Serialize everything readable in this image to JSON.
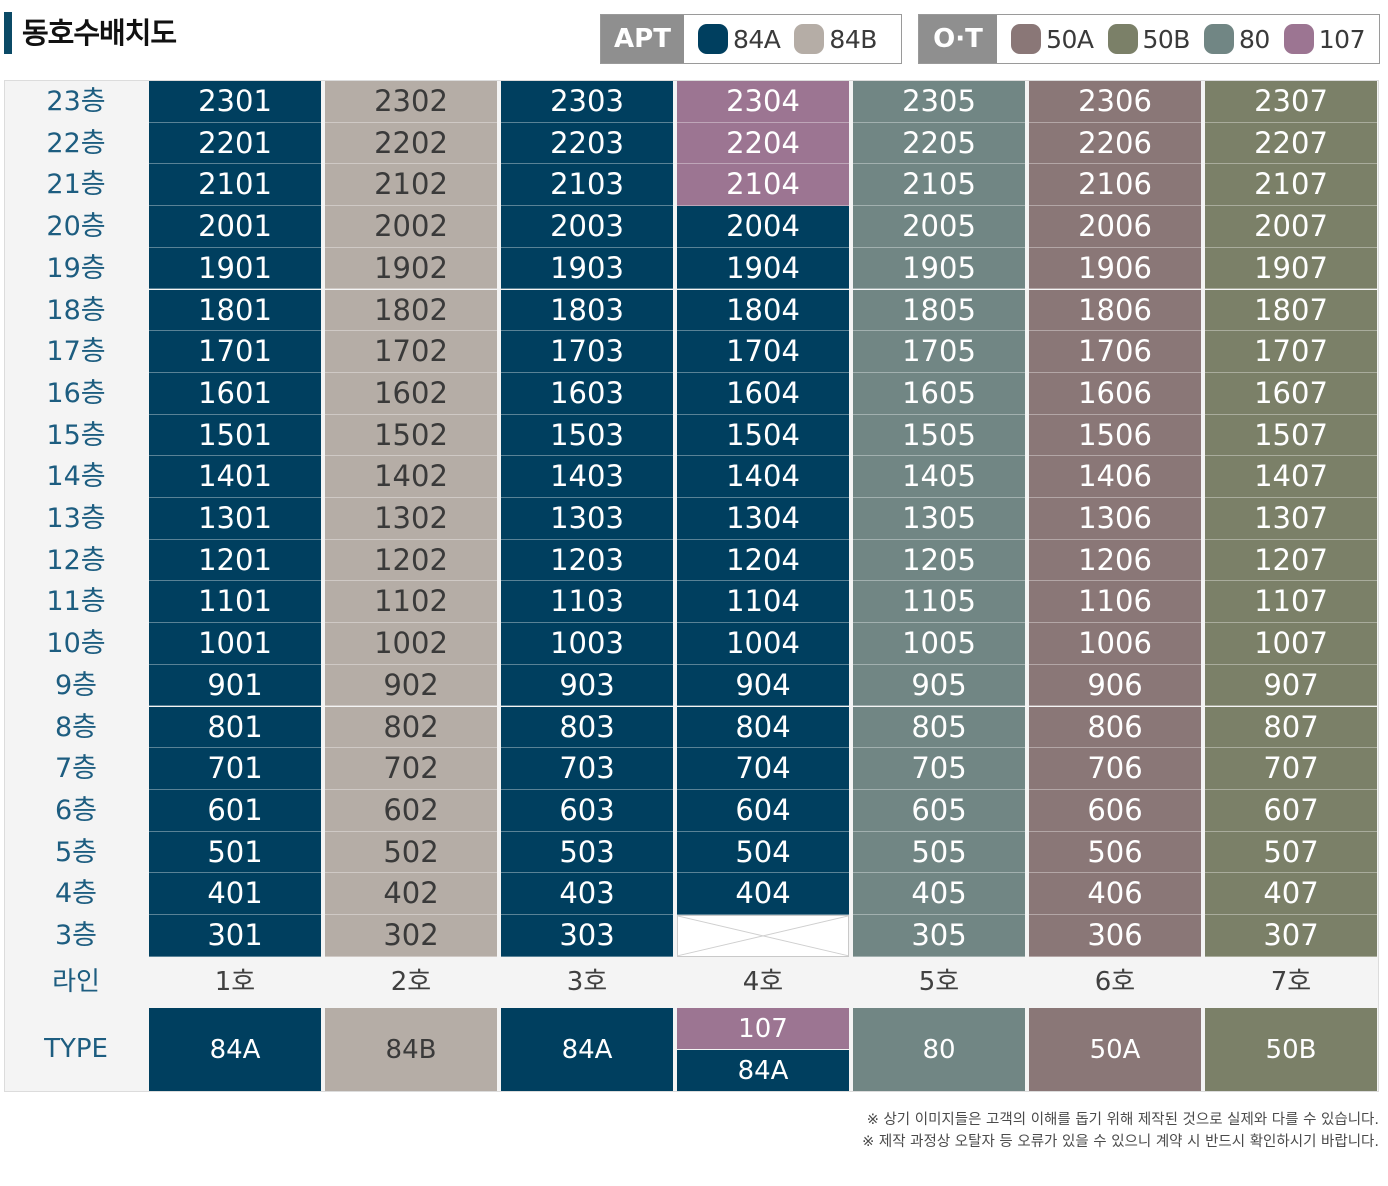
{
  "title": "동호수배치도",
  "legend": {
    "apt": {
      "label": "APT",
      "items": [
        {
          "name": "84A",
          "color": "#003f5f"
        },
        {
          "name": "84B",
          "color": "#b5ada6"
        }
      ]
    },
    "ot": {
      "label": "O·T",
      "items": [
        {
          "name": "50A",
          "color": "#8a7777"
        },
        {
          "name": "50B",
          "color": "#7b8068"
        },
        {
          "name": "80",
          "color": "#718684"
        },
        {
          "name": "107",
          "color": "#9c7592"
        }
      ]
    }
  },
  "floors": [
    "23층",
    "22층",
    "21층",
    "20층",
    "19층",
    "18층",
    "17층",
    "16층",
    "15층",
    "14층",
    "13층",
    "12층",
    "11층",
    "10층",
    "9층",
    "8층",
    "7층",
    "6층",
    "5층",
    "4층",
    "3층"
  ],
  "lines": [
    {
      "label": "1호",
      "type": "84A",
      "color": "#003f5f",
      "units": [
        "2301",
        "2201",
        "2101",
        "2001",
        "1901",
        "1801",
        "1701",
        "1601",
        "1501",
        "1401",
        "1301",
        "1201",
        "1101",
        "1001",
        "901",
        "801",
        "701",
        "601",
        "501",
        "401",
        "301"
      ]
    },
    {
      "label": "2호",
      "type": "84B",
      "color": "#b5ada6",
      "units": [
        "2302",
        "2202",
        "2102",
        "2002",
        "1902",
        "1802",
        "1702",
        "1602",
        "1502",
        "1402",
        "1302",
        "1202",
        "1102",
        "1002",
        "902",
        "802",
        "702",
        "602",
        "502",
        "402",
        "302"
      ]
    },
    {
      "label": "3호",
      "type": "84A",
      "color": "#003f5f",
      "units": [
        "2303",
        "2203",
        "2103",
        "2003",
        "1903",
        "1803",
        "1703",
        "1603",
        "1503",
        "1403",
        "1303",
        "1203",
        "1103",
        "1003",
        "903",
        "803",
        "703",
        "603",
        "503",
        "403",
        "303"
      ]
    },
    {
      "label": "4호",
      "type_top": "107",
      "type_bottom": "84A",
      "color_top": "#9c7592",
      "color": "#003f5f",
      "units": [
        "2304",
        "2204",
        "2104",
        "2004",
        "1904",
        "1804",
        "1704",
        "1604",
        "1504",
        "1404",
        "1304",
        "1204",
        "1104",
        "1004",
        "904",
        "804",
        "704",
        "604",
        "504",
        "404",
        ""
      ]
    },
    {
      "label": "5호",
      "type": "80",
      "color": "#718684",
      "units": [
        "2305",
        "2205",
        "2105",
        "2005",
        "1905",
        "1805",
        "1705",
        "1605",
        "1505",
        "1405",
        "1305",
        "1205",
        "1105",
        "1005",
        "905",
        "805",
        "705",
        "605",
        "505",
        "405",
        "305"
      ]
    },
    {
      "label": "6호",
      "type": "50A",
      "color": "#8a7777",
      "units": [
        "2306",
        "2206",
        "2106",
        "2006",
        "1906",
        "1806",
        "1706",
        "1606",
        "1506",
        "1406",
        "1306",
        "1206",
        "1106",
        "1006",
        "906",
        "806",
        "706",
        "606",
        "506",
        "406",
        "306"
      ]
    },
    {
      "label": "7호",
      "type": "50B",
      "color": "#7b8068",
      "units": [
        "2307",
        "2207",
        "2107",
        "2007",
        "1907",
        "1807",
        "1707",
        "1607",
        "1507",
        "1407",
        "1307",
        "1207",
        "1107",
        "1007",
        "907",
        "807",
        "707",
        "607",
        "507",
        "407",
        "307"
      ]
    }
  ],
  "row_labels": {
    "line": "라인",
    "type": "TYPE"
  },
  "notes": [
    "※ 상기 이미지들은 고객의 이해를 돕기 위해 제작된 것으로 실제와 다를 수 있습니다.",
    "※ 제작 과정상 오탈자 등 오류가 있을 수 있으니 계약 시 반드시 확인하시기 바랍니다."
  ]
}
